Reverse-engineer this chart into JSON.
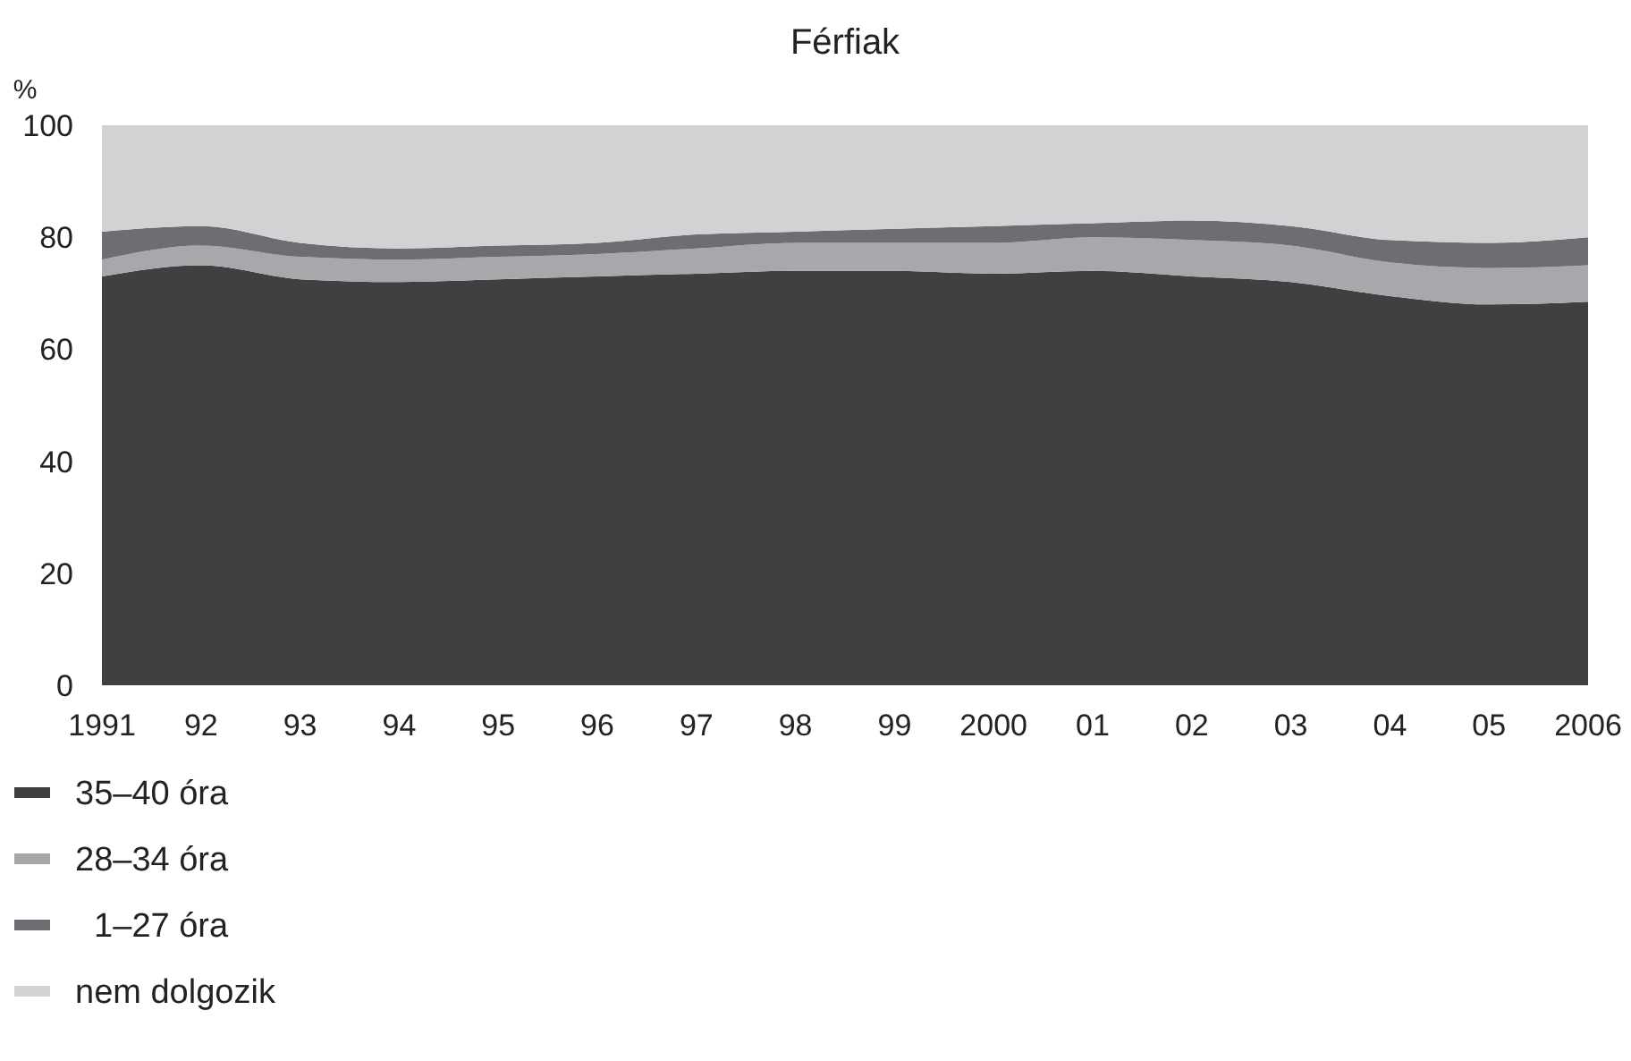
{
  "chart_data": {
    "type": "area",
    "title": "Férfiak",
    "ylabel": "%",
    "stacked": true,
    "legend": "bottom left",
    "grid": false,
    "categories": [
      "1991",
      "92",
      "93",
      "94",
      "95",
      "96",
      "97",
      "98",
      "99",
      "2000",
      "01",
      "02",
      "03",
      "04",
      "05",
      "2006"
    ],
    "ylim": [
      0,
      100
    ],
    "yticks": [
      0,
      20,
      40,
      60,
      80,
      100
    ],
    "series": [
      {
        "name": "35–40 óra",
        "color": "#404040",
        "values": [
          73,
          75,
          72.5,
          72,
          72.5,
          73,
          73.5,
          74,
          74,
          73.5,
          74,
          73,
          72,
          69.5,
          68,
          68.5
        ]
      },
      {
        "name": "28–34 óra",
        "color": "#a7a8ab",
        "values": [
          3,
          3.5,
          4,
          4,
          4,
          4,
          4.5,
          5,
          5,
          5.5,
          6,
          6.5,
          6.5,
          6,
          6.5,
          6.5
        ]
      },
      {
        "name": "  1–27 óra",
        "color": "#6d6e71",
        "values": [
          5,
          3.5,
          2.5,
          2,
          2,
          2,
          2.5,
          2,
          2.5,
          3,
          2.5,
          3.5,
          3.5,
          4,
          4.5,
          5
        ]
      },
      {
        "name": "nem dolgozik",
        "color": "#d1d2d4",
        "values": [
          19,
          18,
          21,
          22,
          21.5,
          21,
          19.5,
          19,
          18.5,
          18,
          17.5,
          17,
          18,
          20.5,
          21,
          20
        ]
      }
    ]
  }
}
